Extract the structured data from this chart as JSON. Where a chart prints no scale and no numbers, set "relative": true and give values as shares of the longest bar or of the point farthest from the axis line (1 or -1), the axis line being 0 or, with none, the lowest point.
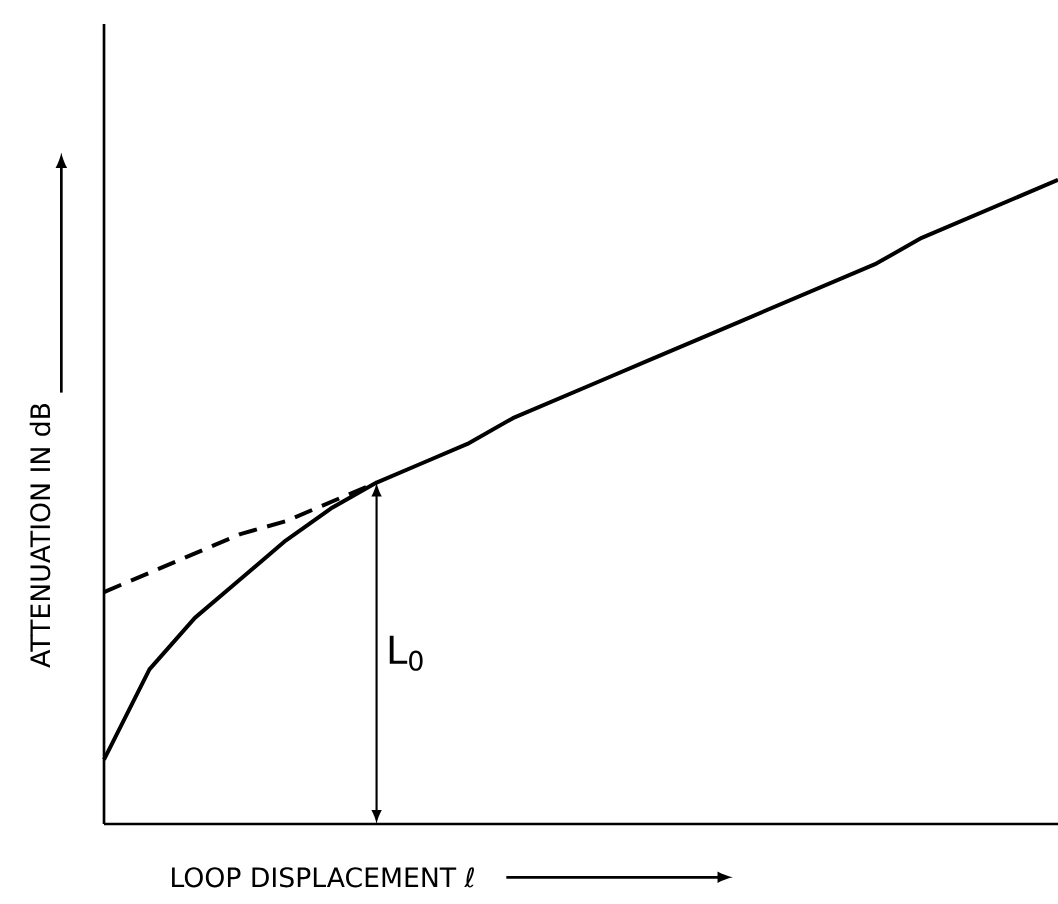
{
  "chart_data": {
    "type": "line",
    "relative": true,
    "xlabel": "LOOP DISPLACEMENT ℓ",
    "ylabel": "ATTENUATION IN dB",
    "categories": [
      null,
      null,
      null,
      null,
      null,
      null,
      null,
      null,
      null,
      null,
      null,
      null,
      null,
      null,
      null,
      null,
      null,
      null,
      null,
      null,
      null,
      null
    ],
    "series": [
      {
        "color": "#000000",
        "line_style": "solid",
        "values": [
          0.1,
          0.24,
          0.32,
          0.38,
          0.44,
          0.49,
          0.53,
          0.56,
          0.59,
          0.63,
          0.66,
          0.69,
          0.72,
          0.75,
          0.78,
          0.81,
          0.84,
          0.87,
          0.91,
          0.94,
          0.97,
          1.0
        ]
      },
      {
        "color": "#000000",
        "line_style": "dashed",
        "values": [
          0.36,
          0.39,
          0.42,
          0.45,
          0.47,
          0.5,
          0.53,
          null,
          null,
          null,
          null,
          null,
          null,
          null,
          null,
          null,
          null,
          null,
          null,
          null,
          null,
          null
        ]
      }
    ],
    "annotations": [
      "L$_{0}$"
    ],
    "marker": "none"
  }
}
